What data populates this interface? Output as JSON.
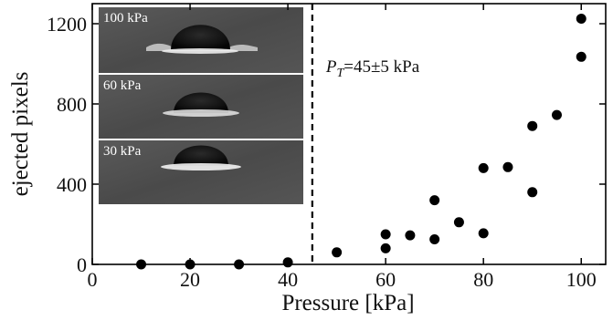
{
  "chart_data": {
    "type": "scatter",
    "title": "",
    "xlabel": "Pressure [kPa]",
    "ylabel": "ejected pixels",
    "xlim": [
      0,
      105
    ],
    "ylim": [
      0,
      1300
    ],
    "xticks": [
      0,
      20,
      40,
      60,
      80,
      100
    ],
    "yticks": [
      0,
      400,
      800,
      1200
    ],
    "grid": false,
    "marker_color": "#000000",
    "points": [
      {
        "x": 10,
        "y": 0
      },
      {
        "x": 20,
        "y": 0
      },
      {
        "x": 30,
        "y": 0
      },
      {
        "x": 40,
        "y": 10
      },
      {
        "x": 50,
        "y": 60
      },
      {
        "x": 60,
        "y": 80
      },
      {
        "x": 60,
        "y": 150
      },
      {
        "x": 65,
        "y": 145
      },
      {
        "x": 70,
        "y": 125
      },
      {
        "x": 70,
        "y": 320
      },
      {
        "x": 75,
        "y": 210
      },
      {
        "x": 80,
        "y": 155
      },
      {
        "x": 80,
        "y": 480
      },
      {
        "x": 85,
        "y": 485
      },
      {
        "x": 90,
        "y": 360
      },
      {
        "x": 90,
        "y": 690
      },
      {
        "x": 95,
        "y": 745
      },
      {
        "x": 100,
        "y": 1035
      },
      {
        "x": 100,
        "y": 1225
      }
    ],
    "threshold": {
      "x": 45,
      "style": "dashed",
      "label_prefix": "P",
      "label_subscript": "T",
      "label_rest": "=45±5 kPa"
    },
    "insets": [
      {
        "label": "100 kPa"
      },
      {
        "label": "60 kPa"
      },
      {
        "label": "30 kPa"
      }
    ]
  }
}
